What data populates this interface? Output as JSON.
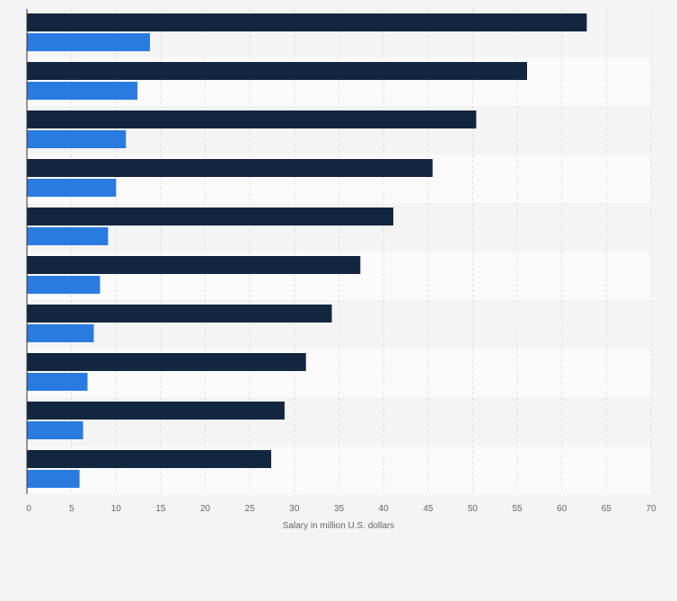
{
  "chart_data": {
    "type": "bar",
    "orientation": "horizontal",
    "title": "",
    "xlabel": "Salary in million U.S. dollars",
    "ylabel": "",
    "xlim": [
      0,
      70
    ],
    "x_ticks": [
      0,
      5,
      10,
      15,
      20,
      25,
      30,
      35,
      40,
      45,
      50,
      55,
      60,
      65,
      70
    ],
    "grid": true,
    "legend": "none",
    "categories": [
      "",
      "",
      "",
      "",
      "",
      "",
      "",
      "",
      "",
      ""
    ],
    "series": [
      {
        "color": "#13263f",
        "values": [
          62.8,
          56.1,
          50.4,
          45.5,
          41.1,
          37.4,
          34.2,
          31.3,
          28.9,
          27.4
        ]
      },
      {
        "color": "#2a7be0",
        "values": [
          13.8,
          12.4,
          11.1,
          10.0,
          9.1,
          8.2,
          7.5,
          6.8,
          6.3,
          5.9
        ]
      }
    ],
    "band_colors": [
      "#f4f4f4",
      "#fafafa"
    ],
    "grid_color": "#dddddd"
  }
}
